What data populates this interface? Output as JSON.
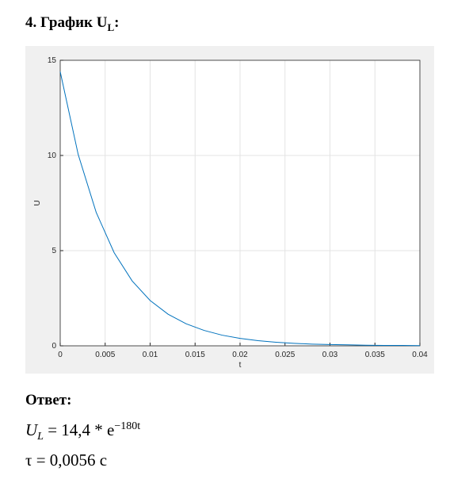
{
  "header": {
    "text": "4. График U",
    "subscript": "L",
    "suffix": ":"
  },
  "chart_data": {
    "type": "line",
    "x": [
      0,
      0.002,
      0.004,
      0.006,
      0.008,
      0.01,
      0.012,
      0.014,
      0.016,
      0.018,
      0.02,
      0.022,
      0.024,
      0.026,
      0.028,
      0.03,
      0.032,
      0.034,
      0.036,
      0.038,
      0.04
    ],
    "values": [
      14.4,
      10.05,
      7.01,
      4.89,
      3.41,
      2.38,
      1.66,
      1.16,
      0.81,
      0.56,
      0.39,
      0.27,
      0.19,
      0.13,
      0.09,
      0.07,
      0.05,
      0.03,
      0.02,
      0.02,
      0.01
    ],
    "color": "#0072bd",
    "xlabel": "t",
    "ylabel": "U",
    "xlim": [
      0,
      0.04
    ],
    "ylim": [
      0,
      15
    ],
    "xticks": [
      0,
      0.005,
      0.01,
      0.015,
      0.02,
      0.025,
      0.03,
      0.035,
      0.04
    ],
    "yticks": [
      0,
      5,
      10,
      15
    ],
    "grid": true
  },
  "answer": {
    "title": "Ответ:",
    "formula": {
      "var": "U",
      "sub": "L",
      "rhs": "= 14,4 * e",
      "exp": "−180t"
    },
    "tau": "τ = 0,0056 с"
  }
}
